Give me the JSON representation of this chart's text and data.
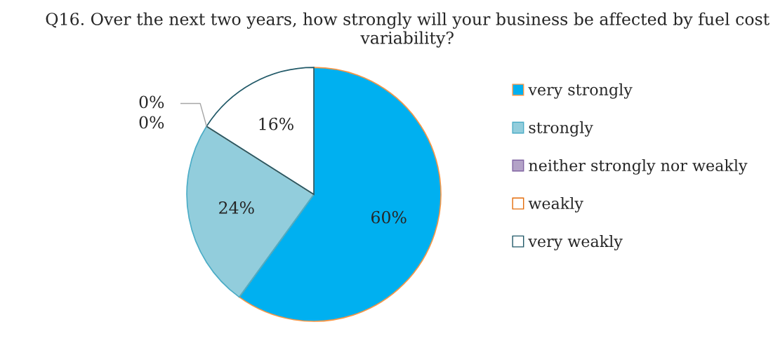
{
  "chart_data": {
    "type": "pie",
    "title": "Q16. Over the next two years, how strongly will your business be affected by fuel cost variability?",
    "categories": [
      "very strongly",
      "strongly",
      "neither strongly nor weakly",
      "weakly",
      "very weakly"
    ],
    "values": [
      60,
      24,
      0,
      0,
      16
    ],
    "value_labels": [
      "60%",
      "24%",
      "0%",
      "0%",
      "16%"
    ],
    "colors": [
      "#00b0f0",
      "#92cddc",
      "#b3a2c7",
      "#ffffff",
      "#ffffff"
    ],
    "legend": "right"
  }
}
